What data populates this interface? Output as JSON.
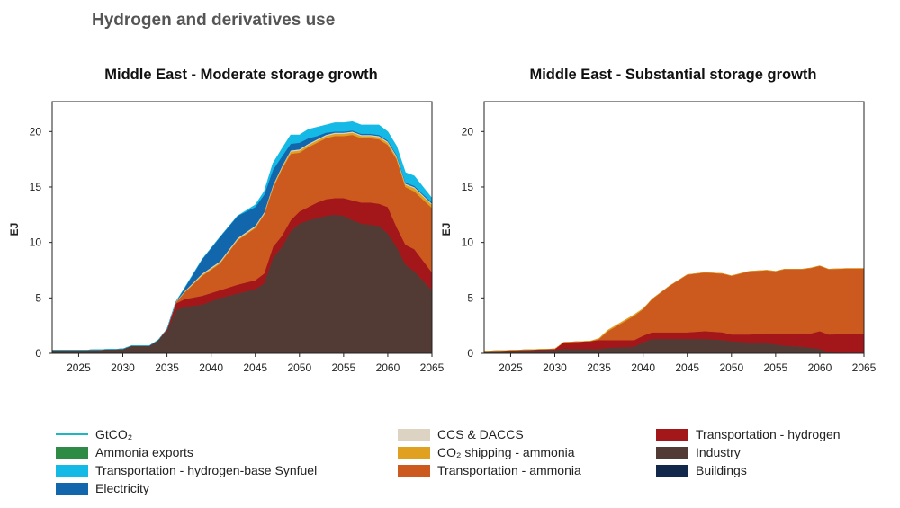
{
  "page_title": "Hydrogen and derivatives use",
  "legend": [
    {
      "label": "GtCO₂",
      "color": "#1fb6c3",
      "kind": "line"
    },
    {
      "label": "Ammonia exports",
      "color": "#2e8b45",
      "kind": "area"
    },
    {
      "label": "Transportation - hydrogen-base Synfuel",
      "color": "#14b9e6",
      "kind": "area"
    },
    {
      "label": "Electricity",
      "color": "#1266ac",
      "kind": "area"
    },
    {
      "label": "CCS & DACCS",
      "color": "#ddd3c3",
      "kind": "area"
    },
    {
      "label": "CO₂ shipping - ammonia",
      "color": "#e0a020",
      "kind": "area"
    },
    {
      "label": "Transportation - ammonia",
      "color": "#cc5a1e",
      "kind": "area"
    },
    {
      "label": "Transportation - hydrogen",
      "color": "#a3171a",
      "kind": "area"
    },
    {
      "label": "Industry",
      "color": "#533b35",
      "kind": "area"
    },
    {
      "label": "Buildings",
      "color": "#13294b",
      "kind": "area"
    }
  ],
  "chart_data": [
    {
      "type": "area",
      "title": "Middle East - Moderate storage growth",
      "xlabel": "",
      "ylabel": "EJ",
      "xlim": [
        2022,
        2065
      ],
      "ylim": [
        0,
        22.7
      ],
      "x_ticks": [
        2025,
        2030,
        2035,
        2040,
        2045,
        2050,
        2055,
        2060,
        2065
      ],
      "y_ticks": [
        0,
        5,
        10,
        15,
        20
      ],
      "grid": false,
      "x": [
        2022,
        2026,
        2030,
        2031,
        2033,
        2034,
        2035,
        2036,
        2037,
        2039,
        2041,
        2043,
        2045,
        2046,
        2047,
        2048,
        2049,
        2050,
        2051,
        2052,
        2053,
        2054,
        2055,
        2056,
        2057,
        2058,
        2059,
        2060,
        2061,
        2062,
        2063,
        2065
      ],
      "series": [
        {
          "name": "Industry",
          "color": "#533b35",
          "values": [
            0.3,
            0.3,
            0.4,
            0.7,
            0.7,
            1.2,
            2.0,
            3.9,
            4.2,
            4.4,
            5.0,
            5.4,
            5.8,
            6.3,
            8.6,
            9.6,
            11.0,
            11.7,
            12.0,
            12.2,
            12.4,
            12.5,
            12.4,
            12.0,
            11.7,
            11.6,
            11.5,
            10.8,
            9.6,
            8.0,
            7.4,
            5.7
          ]
        },
        {
          "name": "Transportation - hydrogen",
          "color": "#a3171a",
          "values": [
            0,
            0,
            0,
            0,
            0,
            0,
            0.2,
            0.6,
            0.7,
            0.8,
            0.7,
            0.8,
            0.8,
            0.9,
            1.0,
            1.0,
            1.0,
            1.1,
            1.2,
            1.4,
            1.5,
            1.5,
            1.6,
            1.8,
            1.9,
            2.0,
            2.0,
            2.4,
            1.8,
            1.8,
            2.0,
            1.6
          ]
        },
        {
          "name": "Transportation - ammonia",
          "color": "#cc5a1e",
          "values": [
            0,
            0,
            0,
            0,
            0,
            0,
            0,
            0.1,
            0.6,
            1.8,
            2.4,
            4.0,
            4.7,
            5.3,
            5.3,
            6.0,
            6.0,
            5.3,
            5.4,
            5.4,
            5.5,
            5.6,
            5.6,
            5.9,
            5.8,
            5.8,
            5.8,
            5.6,
            6.1,
            5.2,
            5.2,
            5.8
          ]
        },
        {
          "name": "CO₂ shipping - ammonia",
          "color": "#e0a020",
          "values": [
            0,
            0,
            0,
            0,
            0,
            0,
            0,
            0,
            0.05,
            0.1,
            0.1,
            0.1,
            0.1,
            0.1,
            0.15,
            0.15,
            0.2,
            0.2,
            0.2,
            0.2,
            0.2,
            0.2,
            0.2,
            0.2,
            0.2,
            0.2,
            0.2,
            0.2,
            0.2,
            0.2,
            0.3,
            0.3
          ]
        },
        {
          "name": "CCS & DACCS",
          "color": "#ddd3c3",
          "values": [
            0,
            0,
            0,
            0,
            0,
            0,
            0,
            0.05,
            0.05,
            0.1,
            0.1,
            0.1,
            0.1,
            0.1,
            0.1,
            0.1,
            0.1,
            0.1,
            0.1,
            0.1,
            0.1,
            0.1,
            0.1,
            0.1,
            0.1,
            0.1,
            0.1,
            0.1,
            0.1,
            0.1,
            0.1,
            0.1
          ]
        },
        {
          "name": "Electricity",
          "color": "#1266ac",
          "values": [
            0,
            0,
            0,
            0,
            0,
            0,
            0,
            0,
            0.3,
            1.3,
            2.2,
            2.0,
            1.7,
            1.6,
            1.4,
            0.9,
            0.6,
            0.6,
            0.5,
            0.3,
            0.2,
            0.1,
            0.1,
            0.1,
            0.1,
            0.1,
            0.1,
            0.1,
            0.1,
            0.1,
            0.1,
            0.1
          ]
        },
        {
          "name": "Transportation - hydrogen-base Synfuel",
          "color": "#14b9e6",
          "values": [
            0,
            0,
            0,
            0,
            0,
            0,
            0,
            0,
            0,
            0,
            0,
            0,
            0.2,
            0.3,
            0.6,
            0.7,
            0.8,
            0.7,
            0.8,
            0.8,
            0.7,
            0.8,
            0.8,
            0.8,
            0.8,
            0.8,
            0.9,
            0.8,
            0.8,
            0.9,
            0.9,
            0.4
          ]
        }
      ]
    },
    {
      "type": "area",
      "title": "Middle East - Substantial storage growth",
      "xlabel": "",
      "ylabel": "EJ",
      "xlim": [
        2022,
        2065
      ],
      "ylim": [
        0,
        22.7
      ],
      "x_ticks": [
        2025,
        2030,
        2035,
        2040,
        2045,
        2050,
        2055,
        2060,
        2065
      ],
      "y_ticks": [
        0,
        5,
        10,
        15,
        20
      ],
      "grid": false,
      "x": [
        2022,
        2026,
        2030,
        2031,
        2034,
        2035,
        2036,
        2039,
        2040,
        2041,
        2043,
        2044,
        2045,
        2047,
        2049,
        2050,
        2052,
        2054,
        2055,
        2056,
        2058,
        2059,
        2060,
        2061,
        2063,
        2065
      ],
      "series": [
        {
          "name": "Industry",
          "color": "#533b35",
          "values": [
            0.2,
            0.25,
            0.3,
            0.4,
            0.4,
            0.4,
            0.5,
            0.6,
            1.0,
            1.3,
            1.3,
            1.3,
            1.3,
            1.3,
            1.2,
            1.1,
            1.0,
            0.9,
            0.8,
            0.7,
            0.6,
            0.5,
            0.4,
            0.1,
            0.05,
            0.05
          ]
        },
        {
          "name": "Transportation - hydrogen",
          "color": "#a3171a",
          "values": [
            0,
            0.05,
            0.1,
            0.6,
            0.7,
            0.8,
            0.7,
            0.6,
            0.6,
            0.6,
            0.6,
            0.6,
            0.6,
            0.7,
            0.7,
            0.6,
            0.7,
            0.9,
            1.0,
            1.1,
            1.2,
            1.3,
            1.6,
            1.6,
            1.7,
            1.7
          ]
        },
        {
          "name": "Transportation - ammonia",
          "color": "#cc5a1e",
          "values": [
            0,
            0,
            0,
            0,
            0,
            0.1,
            0.8,
            2.2,
            2.4,
            3.0,
            4.2,
            4.7,
            5.2,
            5.3,
            5.3,
            5.3,
            5.7,
            5.7,
            5.6,
            5.8,
            5.8,
            5.9,
            5.9,
            5.9,
            5.9,
            5.9
          ]
        },
        {
          "name": "CO₂ shipping - ammonia",
          "color": "#e0a020",
          "values": [
            0,
            0,
            0,
            0,
            0,
            0.05,
            0.1,
            0.1,
            0.05,
            0,
            0,
            0,
            0,
            0,
            0,
            0,
            0,
            0,
            0,
            0,
            0,
            0,
            0,
            0,
            0,
            0
          ]
        }
      ]
    }
  ]
}
